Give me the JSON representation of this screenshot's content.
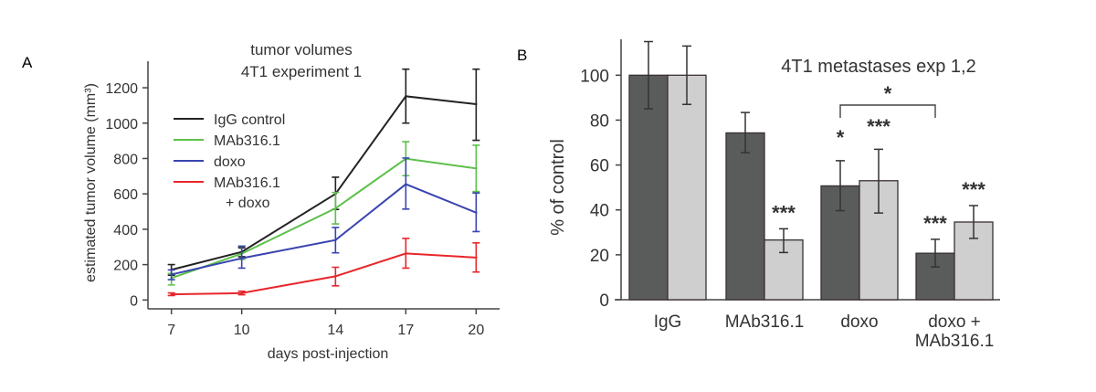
{
  "panel_labels": {
    "a": "A",
    "b": "B"
  },
  "chart_data": [
    {
      "type": "line",
      "title": [
        "tumor volumes",
        "4T1 experiment 1"
      ],
      "xlabel": "days post-injection",
      "ylabel": "estimated tumor volume (mm³)",
      "x": [
        7,
        10,
        14,
        17,
        20
      ],
      "xlim": [
        6,
        21
      ],
      "ylim": [
        -50,
        1350
      ],
      "yticks": [
        0,
        200,
        400,
        600,
        800,
        1000,
        1200
      ],
      "grid": false,
      "legend_position": "upper-left",
      "series": [
        {
          "name": "IgG control",
          "color": "#222222",
          "values": [
            171,
            272,
            600,
            1152,
            1107
          ],
          "err_low": [
            140,
            245,
            512,
            1000,
            903
          ],
          "err_high": [
            200,
            295,
            694,
            1305,
            1305
          ]
        },
        {
          "name": "MAb316.1",
          "color": "#5cc04a",
          "values": [
            124,
            262,
            518,
            799,
            744
          ],
          "err_low": [
            85,
            230,
            430,
            703,
            613
          ],
          "err_high": [
            150,
            305,
            608,
            895,
            875
          ]
        },
        {
          "name": "doxo",
          "color": "#3a44b0",
          "values": [
            144,
            236,
            339,
            655,
            494
          ],
          "err_low": [
            115,
            180,
            267,
            514,
            387
          ],
          "err_high": [
            170,
            304,
            410,
            803,
            605
          ]
        },
        {
          "name": "MAb316.1\n+ doxo",
          "name_lines": [
            "MAb316.1",
            "+ doxo"
          ],
          "color": "#e8262a",
          "values": [
            32,
            39,
            134,
            263,
            240
          ],
          "err_low": [
            25,
            30,
            80,
            180,
            158
          ],
          "err_high": [
            40,
            50,
            185,
            348,
            323
          ]
        }
      ]
    },
    {
      "type": "bar",
      "title": "4T1 metastases exp 1,2",
      "ylabel": "% of control",
      "categories": [
        "IgG",
        "MAb316.1",
        "doxo",
        "doxo +\nMAb316.1"
      ],
      "category_lines": [
        [
          "IgG"
        ],
        [
          "MAb316.1"
        ],
        [
          "doxo"
        ],
        [
          "doxo +",
          "MAb316.1"
        ]
      ],
      "ylim": [
        0,
        116
      ],
      "yticks": [
        0,
        20,
        40,
        60,
        80,
        100
      ],
      "grid": false,
      "series": [
        {
          "color": "#5a5c5b",
          "values": [
            100,
            74.3,
            50.7,
            20.7
          ],
          "err_low": [
            85,
            65.5,
            39.7,
            14.6
          ],
          "err_high": [
            115,
            83.4,
            61.9,
            26.9
          ],
          "significance": [
            "",
            "",
            "*",
            "***"
          ]
        },
        {
          "color": "#cfcfcf",
          "values": [
            100,
            26.6,
            53,
            34.6
          ],
          "err_low": [
            87,
            21,
            38.6,
            27.3
          ],
          "err_high": [
            113,
            31.6,
            67,
            41.9
          ],
          "significance": [
            "",
            "***",
            "***",
            "***"
          ]
        }
      ],
      "bracket": {
        "from": "doxo (dark)",
        "to": "doxo + MAb316.1 (dark)",
        "label": "*"
      }
    }
  ]
}
